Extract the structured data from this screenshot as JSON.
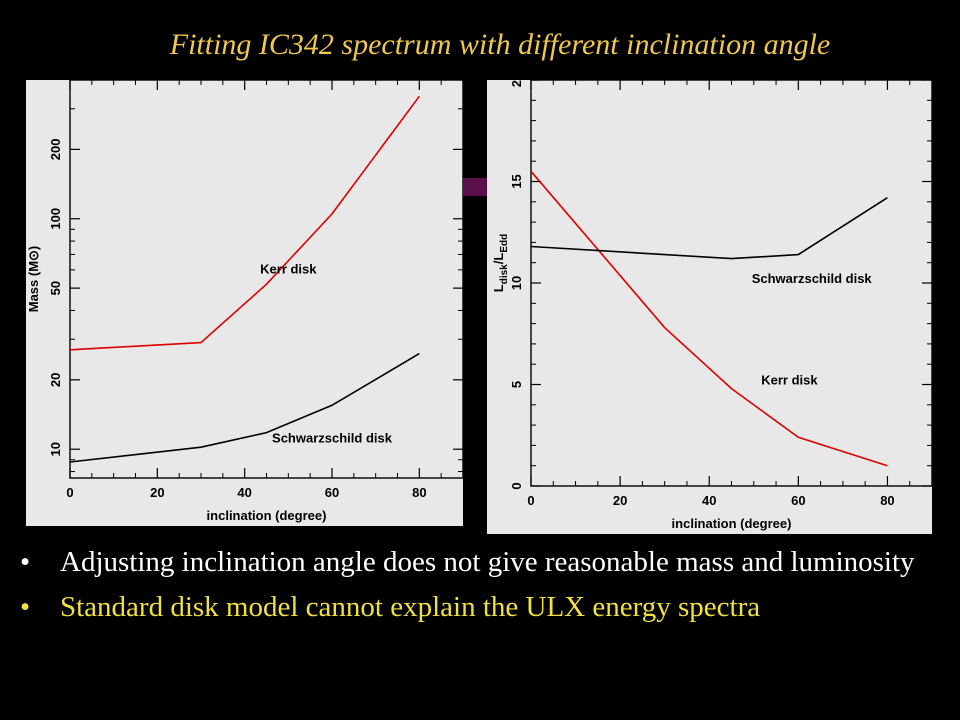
{
  "slide": {
    "title": "Fitting IC342 spectrum with different inclination angle",
    "title_color": "#f0c850",
    "accent_color": "#5a0f4a"
  },
  "bullets": [
    {
      "text": "Adjusting inclination angle  does not give reasonable mass and luminosity",
      "color": "#ffffff"
    },
    {
      "text": "Standard disk model cannot explain the ULX energy spectra",
      "color": "#f0e040"
    }
  ],
  "bullet_glyph": "•",
  "chart_data": [
    {
      "type": "line",
      "xlabel": "inclination (degree)",
      "ylabel": "Mass (M⊙)",
      "yscale": "log",
      "xlim": [
        0,
        90
      ],
      "ylim": [
        7.5,
        400
      ],
      "xticks": [
        0,
        20,
        40,
        60,
        80
      ],
      "yticks": [
        10,
        20,
        50,
        100,
        200
      ],
      "grid": false,
      "series": [
        {
          "name": "Kerr disk",
          "color": "#dd0000",
          "x": [
            0,
            30,
            45,
            60,
            80
          ],
          "y": [
            27,
            29,
            52,
            105,
            340
          ]
        },
        {
          "name": "Schwarzschild disk",
          "color": "#000000",
          "x": [
            0,
            30,
            45,
            60,
            80
          ],
          "y": [
            8.8,
            10.2,
            11.8,
            15.5,
            26
          ]
        }
      ]
    },
    {
      "type": "line",
      "xlabel": "inclination (degree)",
      "ylabel": "L_disk/L_Edd",
      "ylabel_main": "L",
      "ylabel_sub1": "disk",
      "ylabel_sub2": "Edd",
      "xlim": [
        0,
        90
      ],
      "ylim": [
        0,
        20
      ],
      "xticks": [
        0,
        20,
        40,
        60,
        80
      ],
      "yticks": [
        0,
        5,
        10,
        15,
        20
      ],
      "grid": false,
      "series": [
        {
          "name": "Kerr disk",
          "color": "#dd0000",
          "x": [
            0,
            30,
            45,
            60,
            80
          ],
          "y": [
            15.5,
            7.8,
            4.8,
            2.4,
            1.0
          ]
        },
        {
          "name": "Schwarzschild disk",
          "color": "#000000",
          "x": [
            0,
            30,
            45,
            60,
            80
          ],
          "y": [
            11.8,
            11.4,
            11.2,
            11.4,
            14.2
          ]
        }
      ]
    }
  ]
}
